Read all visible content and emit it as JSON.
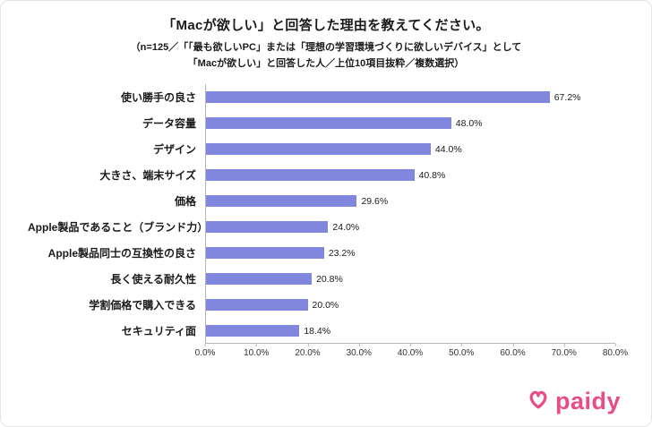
{
  "header": {
    "title": "「Macが欲しい」と回答した理由を教えてください。",
    "subtitle_line1": "（n=125／「「最も欲しいPC」または「理想の学習環境づくりに欲しいデバイス」として",
    "subtitle_line2": "「Macが欲しい」と回答した人／上位10項目抜粋／複数選択）"
  },
  "chart_data": {
    "type": "bar",
    "orientation": "horizontal",
    "title": "「Macが欲しい」と回答した理由を教えてください。",
    "categories": [
      "使い勝手の良さ",
      "データ容量",
      "デザイン",
      "大きさ、端末サイズ",
      "価格",
      "Apple製品であること（ブランド力）",
      "Apple製品同士の互換性の良さ",
      "長く使える耐久性",
      "学割価格で購入できる",
      "セキュリティ面"
    ],
    "values": [
      67.2,
      48.0,
      44.0,
      40.8,
      29.6,
      24.0,
      23.2,
      20.8,
      20.0,
      18.4
    ],
    "value_labels": [
      "67.2%",
      "48.0%",
      "44.0%",
      "40.8%",
      "29.6%",
      "24.0%",
      "23.2%",
      "20.8%",
      "20.0%",
      "18.4%"
    ],
    "xlim": [
      0,
      80
    ],
    "x_ticks": [
      "0.0%",
      "10.0%",
      "20.0%",
      "30.0%",
      "40.0%",
      "50.0%",
      "60.0%",
      "70.0%",
      "80.0%"
    ],
    "bar_color": "#8287DE",
    "grid": false,
    "legend": false
  },
  "footer": {
    "brand": "paidy",
    "brand_color": "#E84D8A"
  }
}
